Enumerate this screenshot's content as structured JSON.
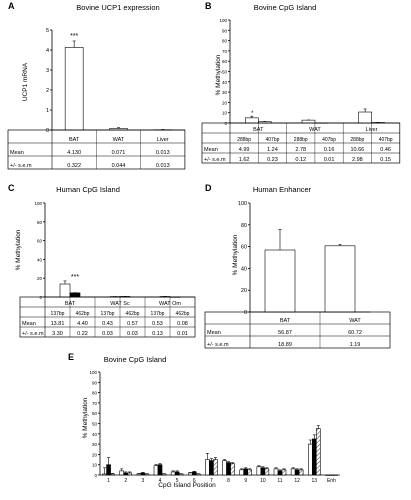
{
  "chart_data": [
    {
      "panel": "A",
      "type": "bar",
      "title": "Bovine UCP1 expression",
      "ylabel": "UCP1 mRNA",
      "ylim": [
        0,
        5
      ],
      "yticks": [
        0,
        1,
        2,
        3,
        4,
        5
      ],
      "categories": [
        "BAT",
        "WAT",
        "Liver"
      ],
      "values": [
        4.13,
        0.071,
        0.013
      ],
      "errors": [
        0.322,
        0.044,
        0.013
      ],
      "annotation": "***",
      "table": {
        "rows": [
          {
            "label": "Mean",
            "values": [
              "4.130",
              "0.071",
              "0.013"
            ]
          },
          {
            "label": "+/- s.e.m",
            "values": [
              "0.322",
              "0.044",
              "0.013"
            ]
          }
        ]
      }
    },
    {
      "panel": "B",
      "type": "bar",
      "title": "Bovine CpG Island",
      "ylabel": "% Methylation",
      "ylim": [
        0,
        100
      ],
      "yticks": [
        0,
        10,
        20,
        30,
        40,
        50,
        60,
        70,
        80,
        90,
        100
      ],
      "categories": [
        "BAT",
        "WAT",
        "Liver"
      ],
      "series": [
        {
          "name": "288bp",
          "values": [
            4.99,
            2.78,
            10.66
          ],
          "errors": [
            1.62,
            0.12,
            2.98
          ]
        },
        {
          "name": "407bp",
          "values": [
            1.24,
            0.16,
            0.46
          ],
          "errors": [
            0.23,
            0.01,
            0.15
          ]
        }
      ],
      "annotation": "*",
      "table": {
        "header": [
          "288bp",
          "407bp",
          "288bp",
          "407bp",
          "288bp",
          "407bp"
        ],
        "rows": [
          {
            "label": "Mean",
            "values": [
              "4.99",
              "1.24",
              "2.78",
              "0.16",
              "10.66",
              "0.46"
            ]
          },
          {
            "label": "+/- s.e.m",
            "values": [
              "1.62",
              "0.23",
              "0.12",
              "0.01",
              "2.98",
              "0.15"
            ]
          }
        ]
      }
    },
    {
      "panel": "C",
      "type": "bar",
      "title": "Human CpG Island",
      "ylabel": "% Methylation",
      "ylim": [
        0,
        100
      ],
      "yticks": [
        0,
        20,
        40,
        60,
        80,
        100
      ],
      "categories": [
        "BAT",
        "WAT Sc",
        "WAT Om"
      ],
      "series": [
        {
          "name": "137bp",
          "values": [
            13.81,
            0.43,
            0.53
          ],
          "errors": [
            3.3,
            0.03,
            0.13
          ]
        },
        {
          "name": "462bp",
          "values": [
            4.4,
            0.57,
            0.08
          ],
          "errors": [
            0.22,
            0.03,
            0.01
          ]
        }
      ],
      "annotation": "***",
      "table": {
        "header": [
          "137bp",
          "462bp",
          "137bp",
          "462bp",
          "137bp",
          "462bp"
        ],
        "rows": [
          {
            "label": "Mean",
            "values": [
              "13.81",
              "4.40",
              "0.43",
              "0.57",
              "0.53",
              "0.08"
            ]
          },
          {
            "label": "+/- s.e.m",
            "values": [
              "3.30",
              "0.22",
              "0.03",
              "0.03",
              "0.13",
              "0.01"
            ]
          }
        ]
      }
    },
    {
      "panel": "D",
      "type": "bar",
      "title": "Human Enhancer",
      "ylabel": "% Methylation",
      "ylim": [
        0,
        100
      ],
      "yticks": [
        0,
        20,
        40,
        60,
        80,
        100
      ],
      "categories": [
        "BAT",
        "WAT"
      ],
      "values": [
        56.87,
        60.72
      ],
      "errors": [
        18.89,
        1.19
      ],
      "table": {
        "rows": [
          {
            "label": "Mean",
            "values": [
              "56.87",
              "60.72"
            ]
          },
          {
            "label": "+/- s.e.m",
            "values": [
              "18.89",
              "1.19"
            ]
          }
        ]
      }
    },
    {
      "panel": "E",
      "type": "bar",
      "title": "Bovine CpG Island",
      "ylabel": "% Methylation",
      "xlabel": "CpG Island Position",
      "ylim": [
        0,
        100
      ],
      "yticks": [
        0,
        10,
        20,
        30,
        40,
        50,
        60,
        70,
        80,
        90,
        100
      ],
      "categories": [
        "1",
        "2",
        "3",
        "4",
        "5",
        "6",
        "7",
        "8",
        "9",
        "10",
        "11",
        "12",
        "13",
        "Enh"
      ],
      "series": [
        {
          "values": [
            1,
            4,
            1,
            9,
            3,
            2,
            15,
            14,
            5,
            8,
            6,
            6,
            30,
            0
          ],
          "errors": [
            6,
            2,
            0.5,
            1,
            1,
            0.5,
            6,
            1,
            1,
            1,
            1,
            1,
            4,
            0
          ]
        },
        {
          "values": [
            10,
            2,
            2,
            10,
            3,
            3,
            14,
            12,
            6,
            7,
            4,
            5,
            35,
            0
          ],
          "errors": [
            7,
            1,
            0.5,
            1,
            1,
            0.5,
            2,
            1,
            1,
            1,
            1,
            1,
            4,
            0
          ]
        },
        {
          "values": [
            1,
            2,
            1,
            1,
            1,
            1,
            15,
            11,
            5,
            6,
            5,
            5,
            45,
            0
          ],
          "errors": [
            0.5,
            1,
            0.3,
            0.3,
            0.3,
            0.3,
            2,
            1,
            1,
            1,
            1,
            1,
            3,
            0
          ]
        }
      ]
    }
  ],
  "panel_letters": [
    "A",
    "B",
    "C",
    "D",
    "E"
  ],
  "colors": {
    "axis": "#000000",
    "bar_white": "#ffffff",
    "bar_black": "#000000",
    "bar_gray": "#9a9a9a",
    "bar_hatch": "#cfcfcf"
  }
}
